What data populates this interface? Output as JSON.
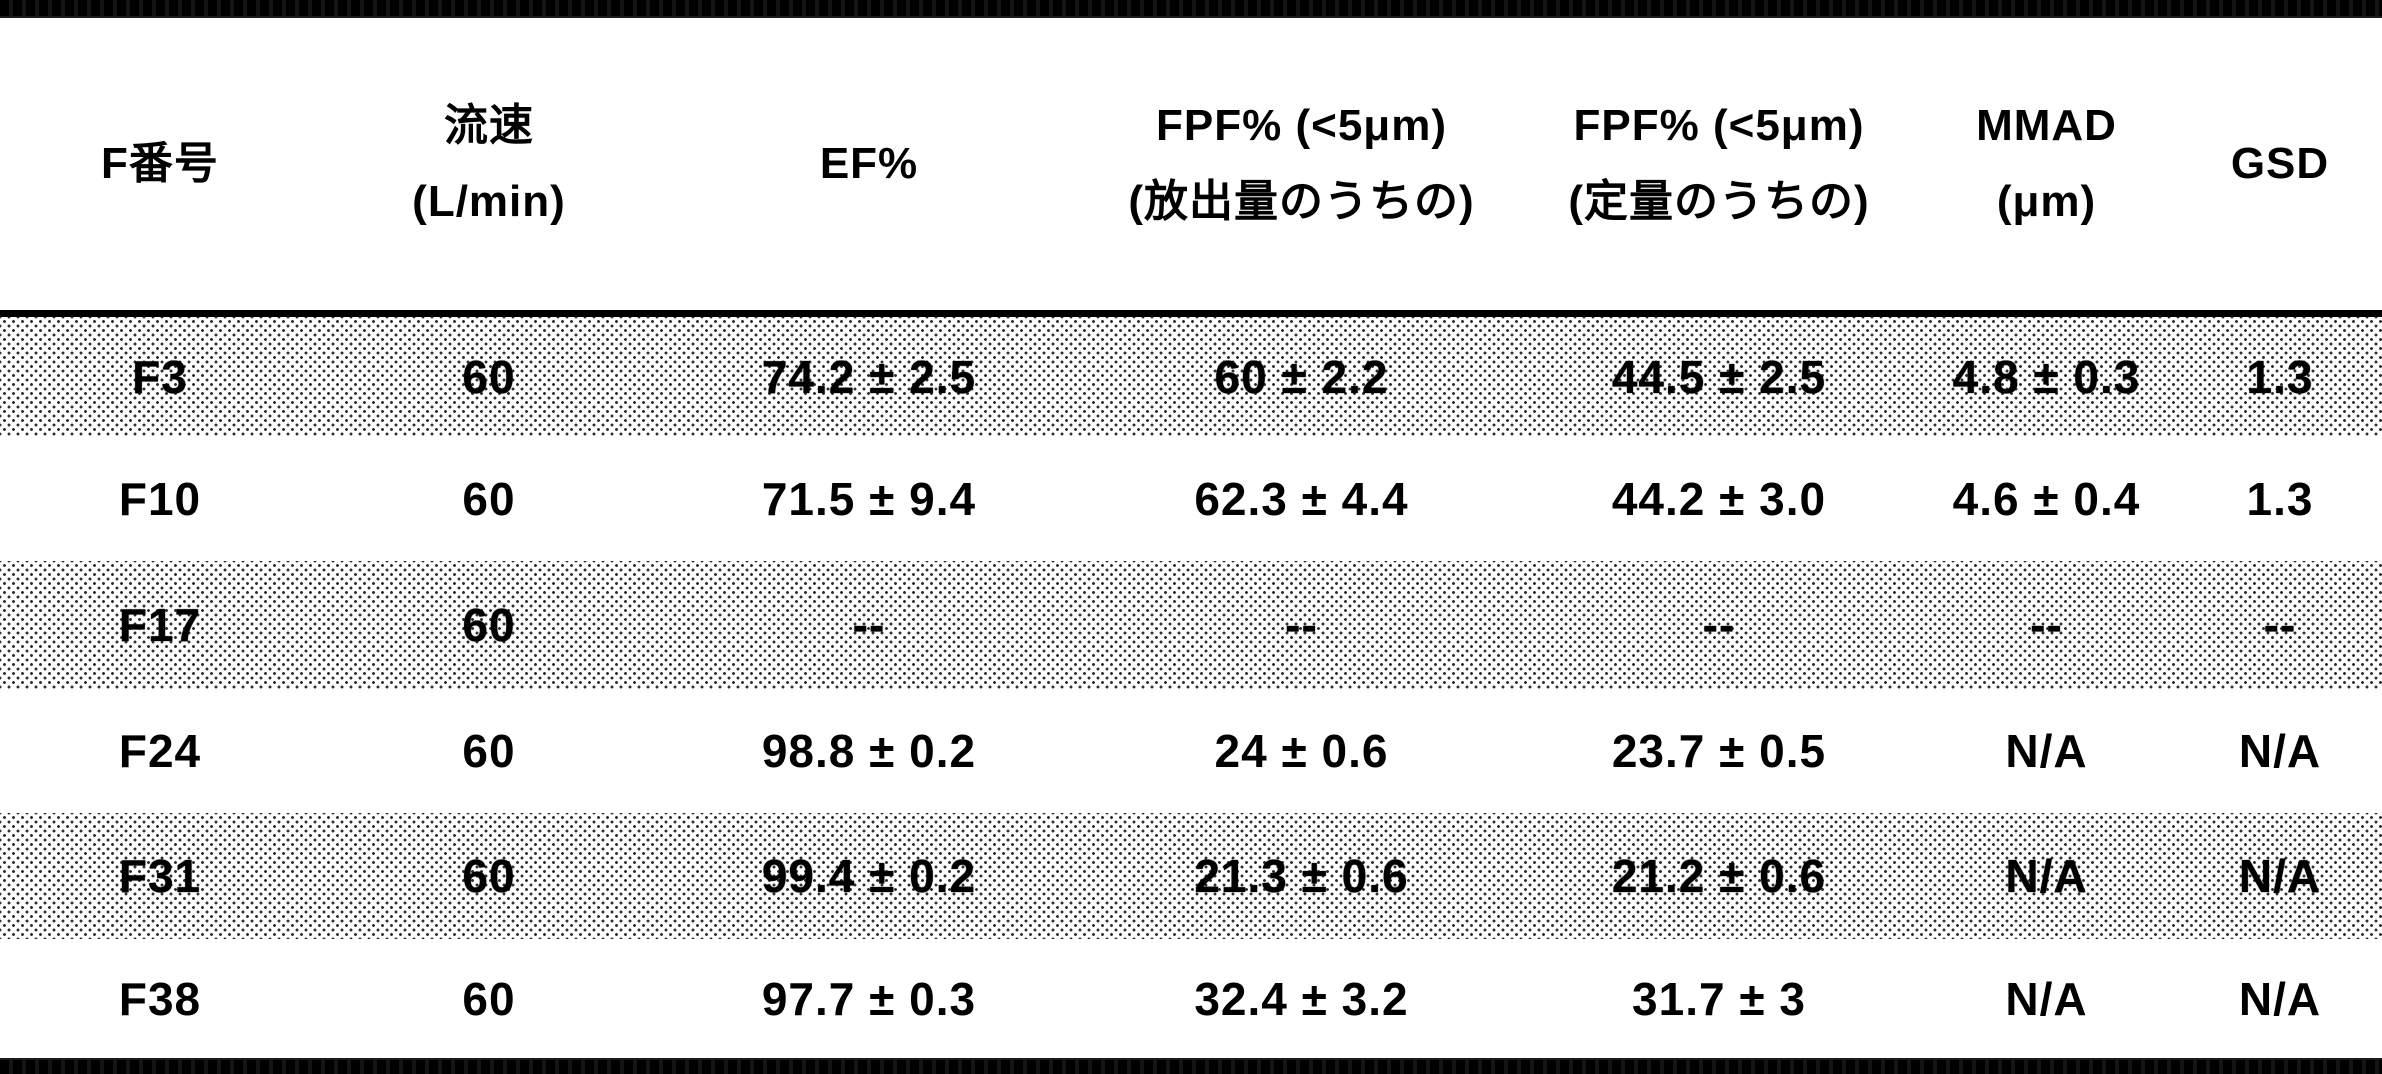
{
  "table": {
    "columns": [
      {
        "id": "f_number",
        "line1": "F番号",
        "line2": ""
      },
      {
        "id": "flow_rate",
        "line1": "流速",
        "line2": "(L/min)"
      },
      {
        "id": "ef_percent",
        "line1": "EF%",
        "line2": ""
      },
      {
        "id": "fpf_emitted",
        "line1": "FPF% (<5μm)",
        "line2": "(放出量のうちの)"
      },
      {
        "id": "fpf_metered",
        "line1": "FPF% (<5μm)",
        "line2": "(定量のうちの)"
      },
      {
        "id": "mmad",
        "line1": "MMAD",
        "line2": "(μm)"
      },
      {
        "id": "gsd",
        "line1": "GSD",
        "line2": ""
      }
    ],
    "rows": [
      {
        "shaded": true,
        "values": [
          "F3",
          "60",
          "74.2 ± 2.5",
          "60 ± 2.2",
          "44.5 ± 2.5",
          "4.8 ± 0.3",
          "1.3"
        ]
      },
      {
        "shaded": false,
        "values": [
          "F10",
          "60",
          "71.5 ± 9.4",
          "62.3 ± 4.4",
          "44.2 ± 3.0",
          "4.6 ± 0.4",
          "1.3"
        ]
      },
      {
        "shaded": true,
        "values": [
          "F17",
          "60",
          "--",
          "--",
          "--",
          "--",
          "--"
        ]
      },
      {
        "shaded": false,
        "values": [
          "F24",
          "60",
          "98.8 ± 0.2",
          "24 ± 0.6",
          "23.7 ± 0.5",
          "N/A",
          "N/A"
        ]
      },
      {
        "shaded": true,
        "values": [
          "F31",
          "60",
          "99.4 ± 0.2",
          "21.3 ± 0.6",
          "21.2 ± 0.6",
          "N/A",
          "N/A"
        ]
      },
      {
        "shaded": false,
        "values": [
          "F38",
          "60",
          "97.7 ± 0.3",
          "32.4 ± 3.2",
          "31.7 ± 3",
          "N/A",
          "N/A"
        ]
      }
    ],
    "colors": {
      "ink": "#000000",
      "paper": "#ffffff",
      "shading_dots": "#000000"
    }
  }
}
